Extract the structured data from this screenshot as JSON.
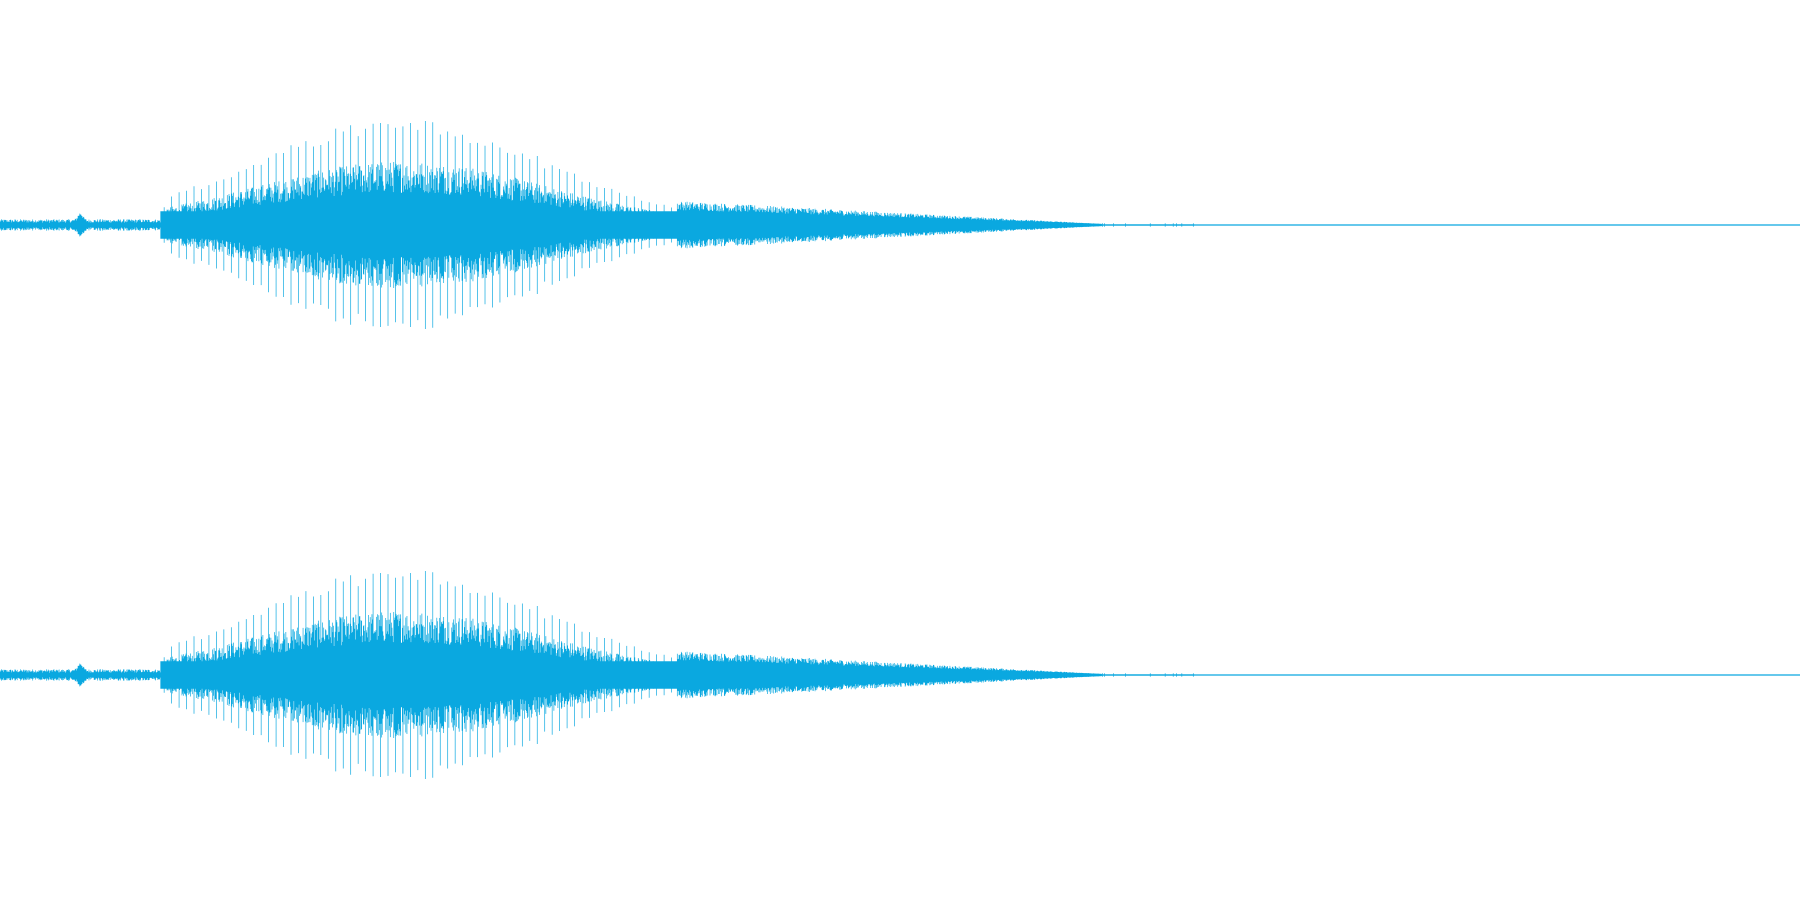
{
  "channels": [
    {
      "color": "#0aa8e0"
    },
    {
      "color": "#0aa8e0"
    }
  ]
}
